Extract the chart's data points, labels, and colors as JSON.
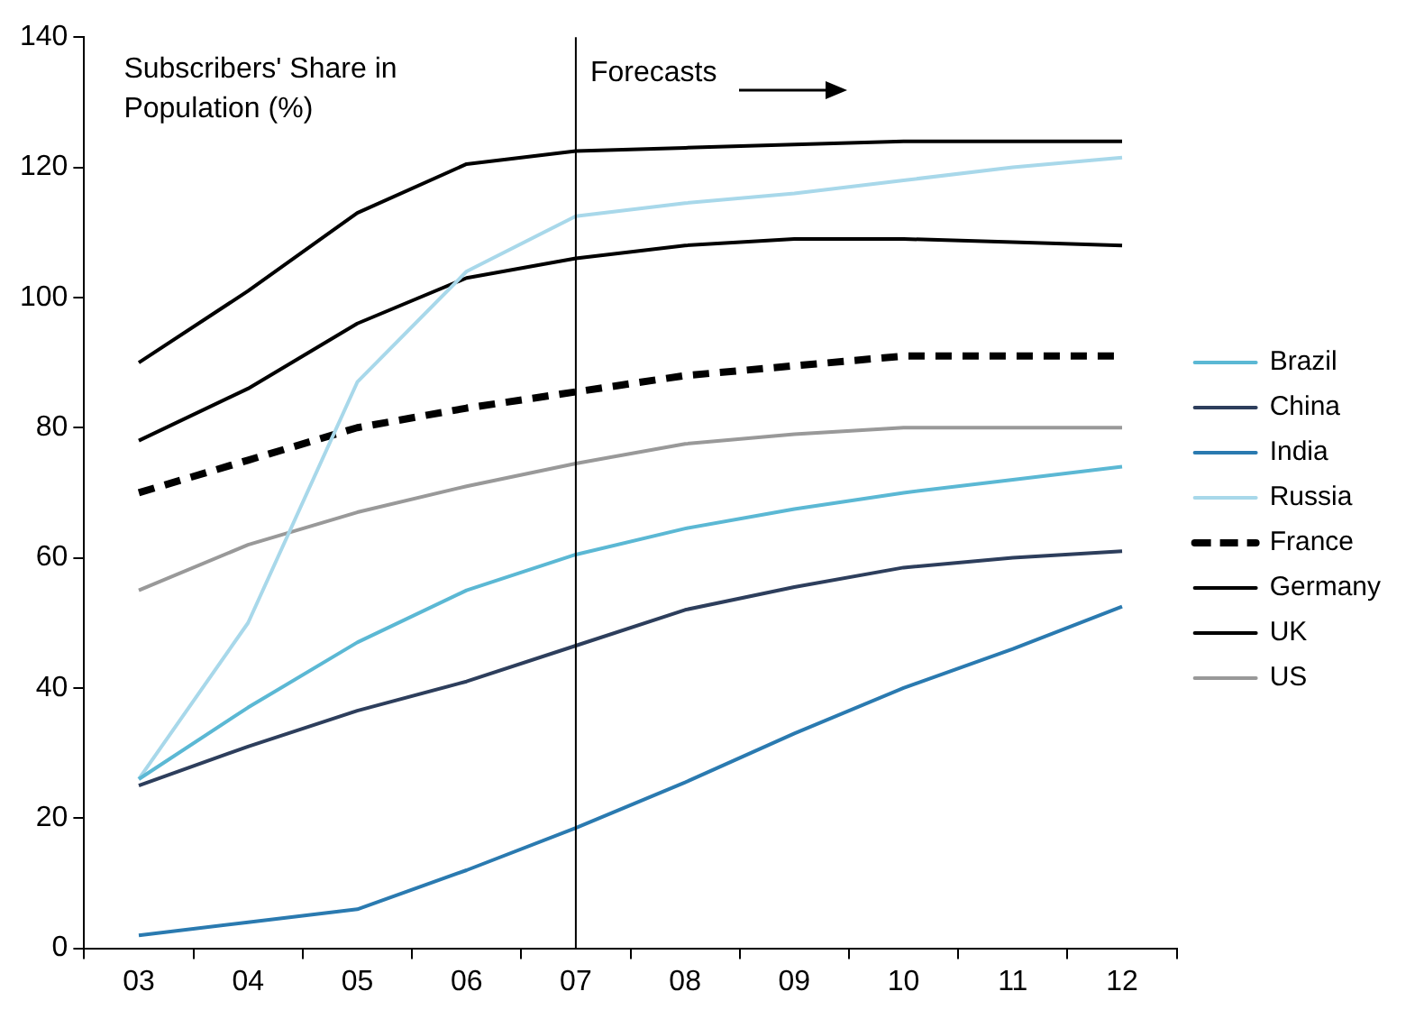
{
  "chart_data": {
    "type": "line",
    "categories": [
      "03",
      "04",
      "05",
      "06",
      "07",
      "08",
      "09",
      "10",
      "11",
      "12"
    ],
    "series": [
      {
        "name": "Brazil",
        "color": "#5bb8d4",
        "values": [
          26,
          37,
          47,
          55,
          60.5,
          64.5,
          67.5,
          70,
          72,
          74
        ]
      },
      {
        "name": "China",
        "color": "#2d3e5c",
        "values": [
          25,
          31,
          36.5,
          41,
          46.5,
          52,
          55.5,
          58.5,
          60,
          61
        ]
      },
      {
        "name": "India",
        "color": "#2a7ab0",
        "values": [
          2,
          4,
          6,
          12,
          18.5,
          25.5,
          33,
          40,
          46,
          52.5
        ]
      },
      {
        "name": "Russia",
        "color": "#a8d8ea",
        "values": [
          26,
          50,
          87,
          104,
          112.5,
          114.5,
          116,
          118,
          120,
          121.5
        ]
      },
      {
        "name": "France",
        "color": "#000000",
        "line_style": "dashed",
        "values": [
          70,
          75,
          80,
          83,
          85.5,
          88,
          89.5,
          91,
          91,
          91
        ]
      },
      {
        "name": "Germany",
        "color": "#000000",
        "values": [
          90,
          101,
          113,
          120.5,
          122.5,
          123,
          123.5,
          124,
          124,
          124
        ]
      },
      {
        "name": "UK",
        "color": "#000000",
        "values": [
          78,
          86,
          96,
          103,
          106,
          108,
          109,
          109,
          108.5,
          108
        ]
      },
      {
        "name": "US",
        "color": "#999999",
        "values": [
          55,
          62,
          67,
          71,
          74.5,
          77.5,
          79,
          80,
          80,
          80
        ]
      }
    ],
    "ylim": [
      0,
      140
    ],
    "yticks": [
      0,
      20,
      40,
      60,
      80,
      100,
      120,
      140
    ],
    "grid": false,
    "legend": "right",
    "marker": "none",
    "line_style": "solid",
    "ref_lines": [
      {
        "axis": "x",
        "value": "07",
        "label": "Forecasts",
        "color": "#000000"
      }
    ],
    "annotations": [
      "Subscribers' Share in Population (%)"
    ]
  }
}
